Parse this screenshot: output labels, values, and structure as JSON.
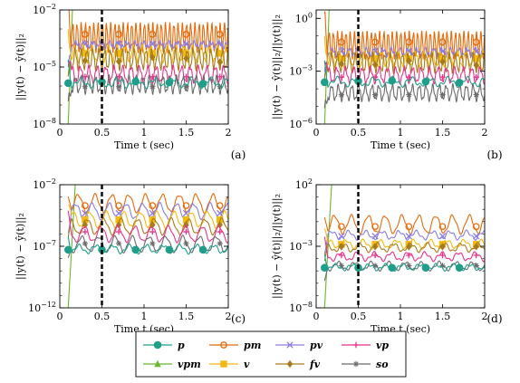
{
  "chart_data": [
    {
      "type": "line",
      "panel_tag": "(a)",
      "xlabel": "Time t (sec)",
      "ylabel": "||y(t) − ŷ(t)||₂",
      "yscale": "log",
      "xlim": [
        0,
        2
      ],
      "ylim": [
        1e-08,
        0.01
      ],
      "x_ticks": [
        "0",
        "0.5",
        "1",
        "1.5",
        "2"
      ],
      "y_ticks": [
        "10^-8",
        "10^-5",
        "10^-2"
      ],
      "marker_line_x": 0.5,
      "series": [
        {
          "name": "p",
          "base": 1.5e-06,
          "amp": 1.6,
          "period": 0.22
        },
        {
          "name": "vpm",
          "base": 0.03,
          "amp": 1.0,
          "period": 0.22
        },
        {
          "name": "pm",
          "base": 0.00035,
          "amp": 5.0,
          "period": 0.05
        },
        {
          "name": "v",
          "base": 5e-05,
          "amp": 2.5,
          "period": 0.1
        },
        {
          "name": "pv",
          "base": 0.00015,
          "amp": 1.3,
          "period": 0.1
        },
        {
          "name": "fv",
          "base": 2.5e-05,
          "amp": 3.0,
          "period": 0.07
        },
        {
          "name": "vp",
          "base": 4e-06,
          "amp": 2.5,
          "period": 0.1
        },
        {
          "name": "so",
          "base": 1.2e-06,
          "amp": 2.5,
          "period": 0.08
        }
      ]
    },
    {
      "type": "line",
      "panel_tag": "(b)",
      "xlabel": "Time t (sec)",
      "ylabel": "||y(t) − ŷ(t)||₂/||y(t)||₂",
      "yscale": "log",
      "xlim": [
        0,
        2
      ],
      "ylim": [
        1e-06,
        3
      ],
      "x_ticks": [
        "0",
        "0.5",
        "1",
        "1.5",
        "2"
      ],
      "y_ticks": [
        "10^-6",
        "10^-3",
        "10^0"
      ],
      "marker_line_x": 0.5,
      "series": [
        {
          "name": "p",
          "base": 0.00025,
          "amp": 1.6,
          "period": 0.22
        },
        {
          "name": "vpm",
          "base": 5,
          "amp": 1.0,
          "period": 0.22
        },
        {
          "name": "pm",
          "base": 0.03,
          "amp": 5.0,
          "period": 0.05
        },
        {
          "name": "v",
          "base": 0.005,
          "amp": 2.5,
          "period": 0.1
        },
        {
          "name": "pv",
          "base": 0.012,
          "amp": 1.5,
          "period": 0.1
        },
        {
          "name": "fv",
          "base": 0.003,
          "amp": 3.0,
          "period": 0.07
        },
        {
          "name": "vp",
          "base": 0.0006,
          "amp": 2.5,
          "period": 0.1
        },
        {
          "name": "so",
          "base": 6e-05,
          "amp": 2.5,
          "period": 0.08
        }
      ]
    },
    {
      "type": "line",
      "panel_tag": "(c)",
      "xlabel": "Time t (sec)",
      "ylabel": "||y(t) − ŷ(t)||₂",
      "yscale": "log",
      "xlim": [
        0,
        2
      ],
      "ylim": [
        1e-12,
        0.01
      ],
      "x_ticks": [
        "0",
        "0.5",
        "1",
        "1.5",
        "2"
      ],
      "y_ticks": [
        "10^-12",
        "10^-7",
        "10^-2"
      ],
      "marker_line_x": 0.5,
      "series": [
        {
          "name": "p",
          "base": 6e-08,
          "amp": 2.0,
          "period": 0.2
        },
        {
          "name": "vpm",
          "base": 0.1,
          "amp": 1.0,
          "period": 0.2
        },
        {
          "name": "pm",
          "base": 0.0003,
          "amp": 5.0,
          "period": 0.2
        },
        {
          "name": "v",
          "base": 1.5e-05,
          "amp": 4.0,
          "period": 0.2
        },
        {
          "name": "pv",
          "base": 7e-05,
          "amp": 4.0,
          "period": 0.2
        },
        {
          "name": "fv",
          "base": 4e-06,
          "amp": 4.0,
          "period": 0.2
        },
        {
          "name": "vp",
          "base": 1e-06,
          "amp": 4.0,
          "period": 0.2
        },
        {
          "name": "so",
          "base": 1.5e-07,
          "amp": 4.0,
          "period": 0.2
        }
      ]
    },
    {
      "type": "line",
      "panel_tag": "(d)",
      "xlabel": "Time t (sec)",
      "ylabel": "||y(t) − ŷ(t)||₂/||y(t)||₂",
      "yscale": "log",
      "xlim": [
        0,
        2
      ],
      "ylim": [
        1e-08,
        100.0
      ],
      "x_ticks": [
        "0",
        "0.5",
        "1",
        "1.5",
        "2"
      ],
      "y_ticks": [
        "10^-8",
        "10^-3",
        "10^2"
      ],
      "marker_line_x": 0.5,
      "series": [
        {
          "name": "p",
          "base": 2e-05,
          "amp": 1.6,
          "period": 0.2
        },
        {
          "name": "vpm",
          "base": 50,
          "amp": 1.0,
          "period": 0.2
        },
        {
          "name": "pm",
          "base": 0.06,
          "amp": 5.0,
          "period": 0.2
        },
        {
          "name": "v",
          "base": 0.0015,
          "amp": 2.0,
          "period": 0.2
        },
        {
          "name": "pv",
          "base": 0.008,
          "amp": 2.0,
          "period": 0.2
        },
        {
          "name": "fv",
          "base": 0.0008,
          "amp": 2.0,
          "period": 0.2
        },
        {
          "name": "vp",
          "base": 0.00015,
          "amp": 2.0,
          "period": 0.2
        },
        {
          "name": "so",
          "base": 2.5e-05,
          "amp": 2.0,
          "period": 0.2
        }
      ]
    }
  ],
  "legend": {
    "entries": [
      {
        "name": "p",
        "color": "#1f9e89",
        "marker": "circle"
      },
      {
        "name": "pm",
        "color": "#e66a0a",
        "marker": "open-circle"
      },
      {
        "name": "pv",
        "color": "#8a7ce0",
        "marker": "x"
      },
      {
        "name": "vp",
        "color": "#e8328c",
        "marker": "plus"
      },
      {
        "name": "vpm",
        "color": "#6bb82c",
        "marker": "triangle"
      },
      {
        "name": "v",
        "color": "#f2b90f",
        "marker": "square"
      },
      {
        "name": "fv",
        "color": "#a67a1e",
        "marker": "diamond"
      },
      {
        "name": "so",
        "color": "#6b6b6b",
        "marker": "star"
      }
    ]
  }
}
